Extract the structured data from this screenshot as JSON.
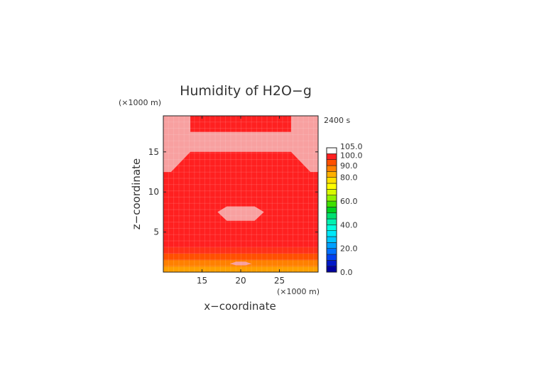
{
  "chart_data": {
    "type": "heatmap",
    "title": "Humidity of H2O−g",
    "time_label": "2400 s",
    "xlabel": "x−coordinate",
    "ylabel": "z−coordinate",
    "x_unit": "(×1000 m)",
    "y_unit": "(×1000 m)",
    "xlim": [
      10,
      30
    ],
    "ylim": [
      0,
      19.5
    ],
    "x_ticks": [
      15,
      20,
      25
    ],
    "y_ticks": [
      5,
      10,
      15
    ],
    "colorbar": {
      "labels": [
        "105.0",
        "100.0",
        "90.0",
        "80.0",
        "60.0",
        "40.0",
        "20.0",
        "0.0"
      ],
      "label_values": [
        105,
        100,
        90,
        80,
        60,
        40,
        20,
        0
      ],
      "bins": [
        {
          "from": 0,
          "to": 5,
          "color": "#0000a0"
        },
        {
          "from": 5,
          "to": 10,
          "color": "#0018c8"
        },
        {
          "from": 10,
          "to": 15,
          "color": "#0040f0"
        },
        {
          "from": 15,
          "to": 20,
          "color": "#0070ff"
        },
        {
          "from": 20,
          "to": 25,
          "color": "#00a0ff"
        },
        {
          "from": 25,
          "to": 30,
          "color": "#00c8ff"
        },
        {
          "from": 30,
          "to": 35,
          "color": "#00e8f8"
        },
        {
          "from": 35,
          "to": 40,
          "color": "#00ffe0"
        },
        {
          "from": 40,
          "to": 45,
          "color": "#00f0b0"
        },
        {
          "from": 45,
          "to": 50,
          "color": "#00e070"
        },
        {
          "from": 50,
          "to": 55,
          "color": "#00d020"
        },
        {
          "from": 55,
          "to": 60,
          "color": "#40e000"
        },
        {
          "from": 60,
          "to": 65,
          "color": "#90f000"
        },
        {
          "from": 65,
          "to": 70,
          "color": "#d8f800"
        },
        {
          "from": 70,
          "to": 75,
          "color": "#ffff00"
        },
        {
          "from": 75,
          "to": 80,
          "color": "#ffe000"
        },
        {
          "from": 80,
          "to": 85,
          "color": "#ffb000"
        },
        {
          "from": 85,
          "to": 90,
          "color": "#ff8000"
        },
        {
          "from": 90,
          "to": 95,
          "color": "#ff5000"
        },
        {
          "from": 95,
          "to": 100,
          "color": "#ff2020"
        },
        {
          "from": 100,
          "to": 105,
          "color": "#ffffff"
        }
      ]
    },
    "field_colors": {
      "saturated": "#ff2020",
      "supersaturated": "#f8a0a0",
      "band_orange": "#ff8000",
      "band_light_orange": "#ffa000",
      "band_red_orange": "#ff5000",
      "band_red": "#ff3018"
    },
    "regions": [
      {
        "name": "surface-band-0",
        "kind": "band",
        "z": [
          0,
          0.7
        ],
        "color_key": "band_light_orange"
      },
      {
        "name": "surface-band-1",
        "kind": "band",
        "z": [
          0.7,
          1.5
        ],
        "color_key": "band_orange"
      },
      {
        "name": "surface-band-2",
        "kind": "band",
        "z": [
          1.5,
          2.3
        ],
        "color_key": "band_red_orange"
      },
      {
        "name": "surface-band-3",
        "kind": "band",
        "z": [
          2.3,
          3.1
        ],
        "color_key": "band_red"
      },
      {
        "name": "upper-supersaturated-layer",
        "kind": "polygon",
        "color_key": "supersaturated",
        "points": [
          [
            10,
            19.5
          ],
          [
            13.5,
            19.5
          ],
          [
            13.5,
            17.5
          ],
          [
            26.5,
            17.5
          ],
          [
            26.5,
            19.5
          ],
          [
            30,
            19.5
          ],
          [
            30,
            12.5
          ],
          [
            29,
            12.5
          ],
          [
            26.5,
            15
          ],
          [
            13.5,
            15
          ],
          [
            11,
            12.5
          ],
          [
            10,
            12.5
          ]
        ]
      },
      {
        "name": "mid-supersaturated-patch",
        "kind": "polygon",
        "color_key": "supersaturated",
        "points": [
          [
            17,
            7.5
          ],
          [
            18.2,
            8.2
          ],
          [
            21.8,
            8.2
          ],
          [
            23,
            7.5
          ],
          [
            21.8,
            6.4
          ],
          [
            18.2,
            6.4
          ]
        ]
      },
      {
        "name": "near-surface-pink-patch",
        "kind": "polygon",
        "color_key": "supersaturated",
        "points": [
          [
            18.6,
            1.05
          ],
          [
            19.4,
            1.3
          ],
          [
            20.6,
            1.3
          ],
          [
            21.4,
            1.05
          ],
          [
            20.6,
            0.85
          ],
          [
            19.4,
            0.85
          ]
        ]
      }
    ]
  }
}
